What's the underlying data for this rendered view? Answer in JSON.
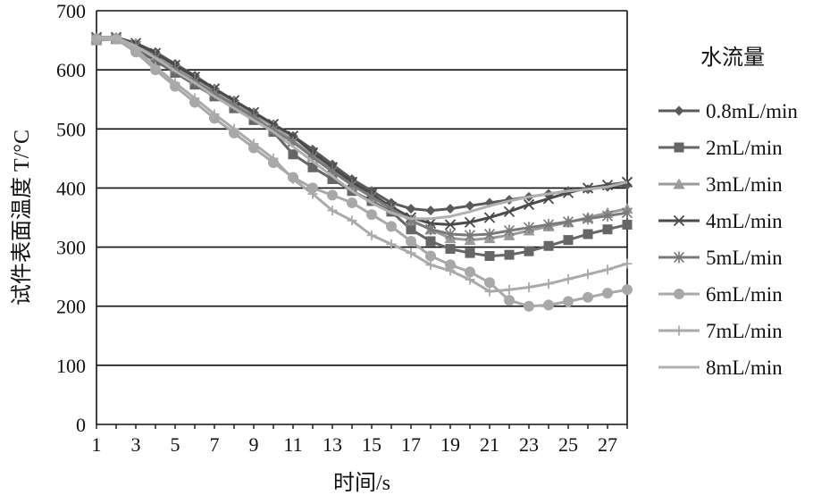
{
  "chart_data": {
    "type": "line",
    "xlabel": "时间/s",
    "ylabel": "试件表面温度 T/°C",
    "xlim": [
      1,
      28
    ],
    "ylim": [
      0,
      700
    ],
    "xticks": [
      1,
      3,
      5,
      7,
      9,
      11,
      13,
      15,
      17,
      19,
      21,
      23,
      25,
      27
    ],
    "yticks": [
      0,
      100,
      200,
      300,
      400,
      500,
      600,
      700
    ],
    "grid": "horizontal",
    "legend": {
      "title": "水流量",
      "placement": "right"
    },
    "x": [
      1,
      2,
      3,
      4,
      5,
      6,
      7,
      8,
      9,
      10,
      11,
      12,
      13,
      14,
      15,
      16,
      17,
      18,
      19,
      20,
      21,
      22,
      23,
      24,
      25,
      26,
      27,
      28
    ],
    "series": [
      {
        "name": "0.8mL/min",
        "color": "#5a5a5a",
        "marker": "diamond",
        "values": [
          655,
          655,
          645,
          630,
          610,
          590,
          568,
          548,
          528,
          508,
          488,
          465,
          440,
          415,
          395,
          375,
          365,
          362,
          365,
          370,
          375,
          380,
          385,
          390,
          395,
          398,
          402,
          405
        ]
      },
      {
        "name": "2mL/min",
        "color": "#666666",
        "marker": "square",
        "values": [
          652,
          652,
          635,
          615,
          595,
          575,
          555,
          535,
          515,
          495,
          457,
          435,
          415,
          395,
          378,
          360,
          330,
          310,
          297,
          290,
          285,
          287,
          293,
          302,
          312,
          322,
          330,
          338
        ]
      },
      {
        "name": "3mL/min",
        "color": "#9a9a9a",
        "marker": "triangle",
        "values": [
          650,
          652,
          645,
          625,
          605,
          585,
          565,
          545,
          525,
          505,
          480,
          455,
          430,
          405,
          385,
          365,
          345,
          330,
          315,
          312,
          315,
          320,
          328,
          335,
          342,
          350,
          358,
          365
        ]
      },
      {
        "name": "4mL/min",
        "color": "#4a4a4a",
        "marker": "x",
        "values": [
          655,
          655,
          645,
          628,
          608,
          588,
          568,
          548,
          528,
          508,
          488,
          460,
          435,
          410,
          390,
          368,
          350,
          340,
          338,
          342,
          350,
          360,
          372,
          382,
          392,
          400,
          405,
          410
        ]
      },
      {
        "name": "5mL/min",
        "color": "#7a7a7a",
        "marker": "asterisk",
        "values": [
          653,
          653,
          640,
          620,
          600,
          580,
          560,
          540,
          520,
          498,
          478,
          452,
          428,
          405,
          385,
          365,
          345,
          330,
          322,
          320,
          322,
          328,
          333,
          338,
          343,
          348,
          353,
          358
        ]
      },
      {
        "name": "6mL/min",
        "color": "#a8a8a8",
        "marker": "circle",
        "values": [
          652,
          652,
          630,
          600,
          572,
          545,
          518,
          493,
          468,
          443,
          418,
          400,
          388,
          375,
          355,
          335,
          310,
          285,
          270,
          258,
          240,
          210,
          200,
          202,
          208,
          215,
          222,
          228
        ]
      },
      {
        "name": "7mL/min",
        "color": "#aaaaaa",
        "marker": "plus",
        "values": [
          652,
          652,
          635,
          605,
          578,
          552,
          525,
          500,
          475,
          450,
          415,
          390,
          362,
          345,
          320,
          305,
          290,
          270,
          260,
          245,
          225,
          228,
          232,
          238,
          246,
          254,
          262,
          272
        ]
      },
      {
        "name": "8mL/min",
        "color": "#b0b0b0",
        "marker": "none",
        "values": [
          655,
          655,
          640,
          620,
          598,
          578,
          555,
          535,
          515,
          495,
          470,
          445,
          420,
          395,
          375,
          358,
          348,
          348,
          352,
          360,
          370,
          378,
          385,
          390,
          395,
          398,
          402,
          410
        ]
      }
    ]
  }
}
